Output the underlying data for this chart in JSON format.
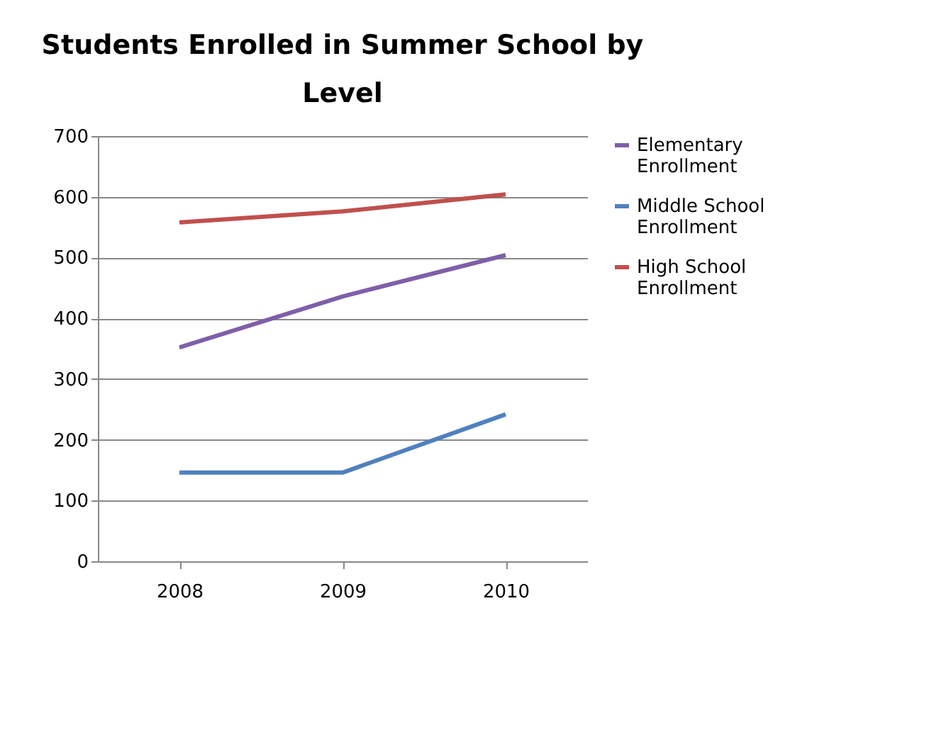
{
  "chart_data": {
    "type": "line",
    "title": "Students Enrolled in Summer School by Level",
    "categories": [
      "2008",
      "2009",
      "2010"
    ],
    "series": [
      {
        "name": "Elementary Enrollment",
        "color": "#7f5fa8",
        "values": [
          352,
          436,
          504
        ]
      },
      {
        "name": "Middle School Enrollment",
        "color": "#4f81bd",
        "values": [
          146,
          146,
          242
        ]
      },
      {
        "name": "High School Enrollment",
        "color": "#c0504d",
        "values": [
          558,
          576,
          604
        ]
      }
    ],
    "ylim": [
      0,
      700
    ],
    "yticks": [
      0,
      100,
      200,
      300,
      400,
      500,
      600,
      700
    ],
    "grid": "y",
    "legend": "right"
  }
}
